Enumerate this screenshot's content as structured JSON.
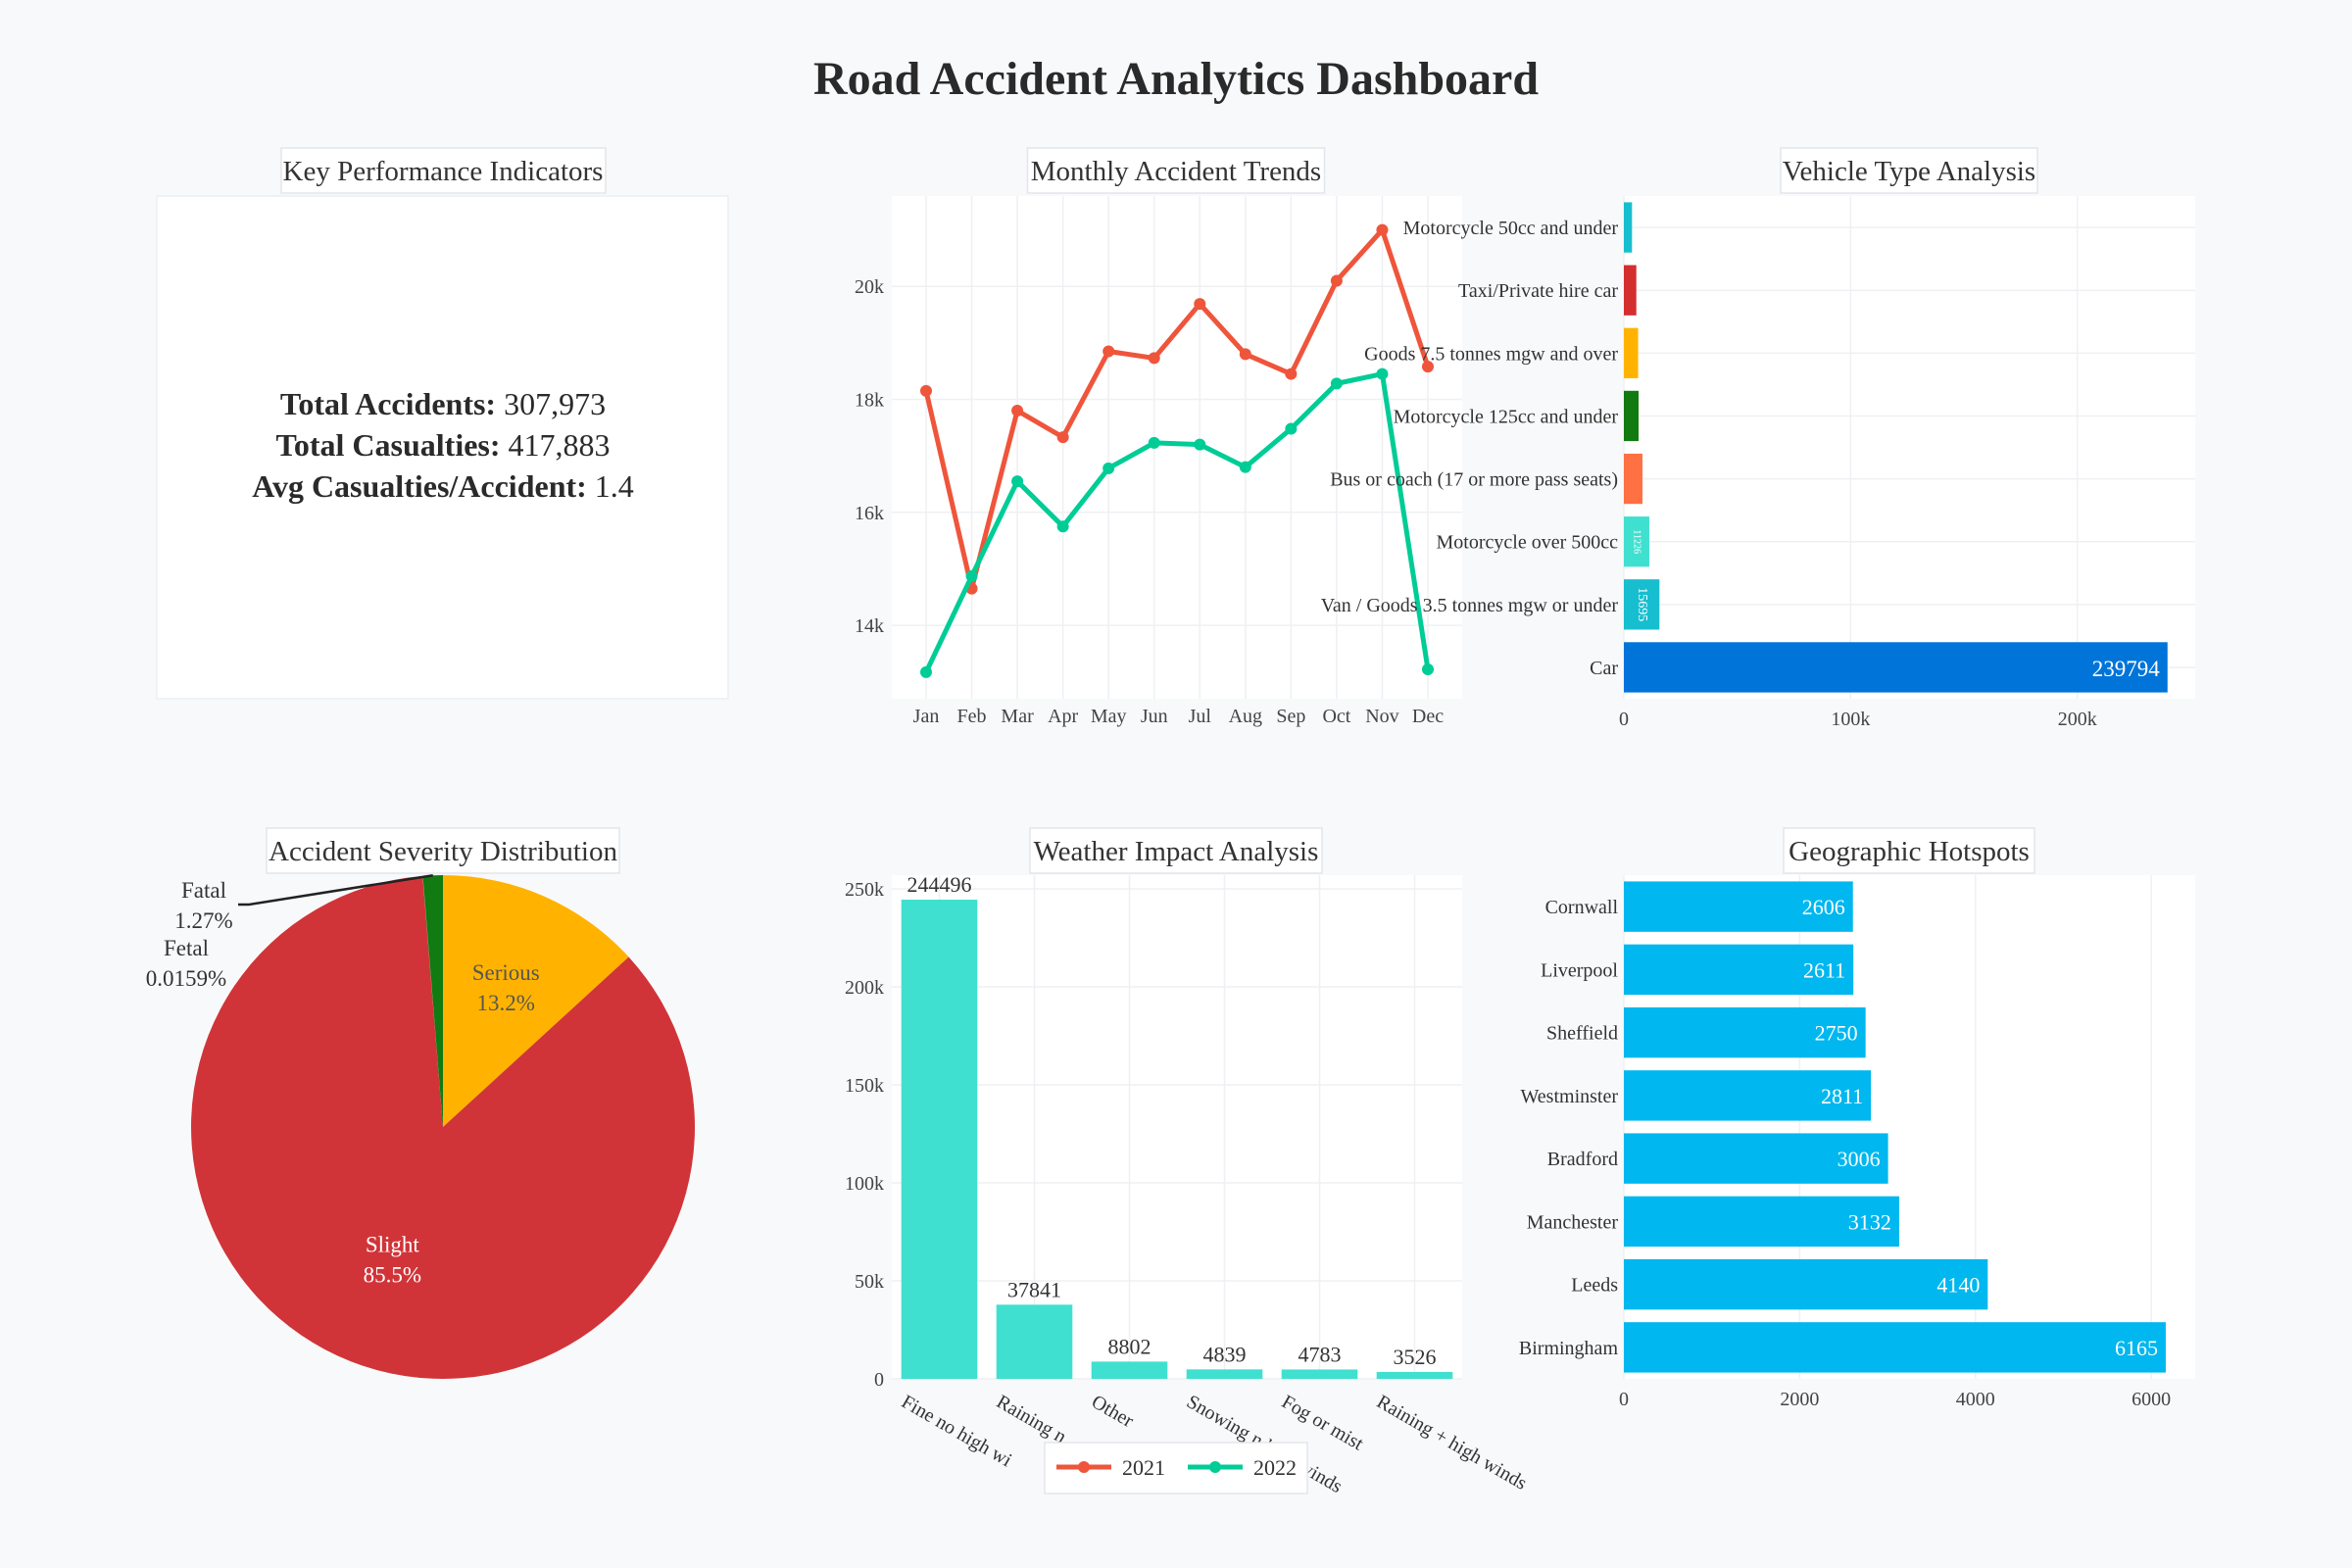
{
  "title": "Road Accident Analytics Dashboard",
  "kpi": {
    "title": "Key Performance Indicators",
    "items": [
      {
        "label": "Total Accidents:",
        "value": "307,973"
      },
      {
        "label": "Total Casualties:",
        "value": "417,883"
      },
      {
        "label": "Avg Casualties/Accident:",
        "value": "1.4"
      }
    ]
  },
  "legend": {
    "items": [
      {
        "name": "2021",
        "color": "#ef553b"
      },
      {
        "name": "2022",
        "color": "#00cc96"
      }
    ]
  },
  "chart_data": [
    {
      "id": "monthly",
      "type": "line",
      "title": "Monthly Accident Trends",
      "x": [
        "Jan",
        "Feb",
        "Mar",
        "Apr",
        "May",
        "Jun",
        "Jul",
        "Aug",
        "Sep",
        "Oct",
        "Nov",
        "Dec"
      ],
      "series": [
        {
          "name": "2021",
          "color": "#ef553b",
          "values": [
            18150,
            14650,
            17800,
            17330,
            18850,
            18730,
            19690,
            18800,
            18450,
            20100,
            21000,
            18580
          ]
        },
        {
          "name": "2022",
          "color": "#00cc96",
          "values": [
            13170,
            14870,
            16550,
            15750,
            16780,
            17230,
            17200,
            16800,
            17480,
            18280,
            18450,
            13220
          ]
        }
      ],
      "ylim": [
        12700,
        21600
      ],
      "yticks": [
        14000,
        16000,
        18000,
        20000
      ],
      "ytick_labels": [
        "14k",
        "16k",
        "18k",
        "20k"
      ],
      "grid": true
    },
    {
      "id": "vehicle",
      "type": "bar",
      "orientation": "horizontal",
      "title": "Vehicle Type Analysis",
      "categories": [
        "Car",
        "Van / Goods 3.5 tonnes mgw or under",
        "Motorcycle over 500cc",
        "Bus or coach (17 or more pass seats)",
        "Motorcycle 125cc and under",
        "Goods 7.5 tonnes mgw and over",
        "Taxi/Private hire car",
        "Motorcycle 50cc and under"
      ],
      "values": [
        239794,
        15695,
        11226,
        8200,
        6500,
        6300,
        5500,
        3600
      ],
      "data_labels": [
        "239794",
        "15695",
        "11226",
        "",
        "",
        "",
        "",
        ""
      ],
      "colors": [
        "#0074d9",
        "#17becf",
        "#40e0d0",
        "#ff7043",
        "#117a11",
        "#ffb300",
        "#d32f2f",
        "#17becf"
      ],
      "xlim": [
        0,
        252000
      ],
      "xticks": [
        0,
        100000,
        200000
      ],
      "xtick_labels": [
        "0",
        "100k",
        "200k"
      ],
      "grid": true
    },
    {
      "id": "severity",
      "type": "pie",
      "title": "Accident Severity Distribution",
      "slices": [
        {
          "label": "Serious",
          "pct": 13.2,
          "pct_label": "13.2%",
          "color": "#ffb300"
        },
        {
          "label": "Slight",
          "pct": 85.5,
          "pct_label": "85.5%",
          "color": "#d13438"
        },
        {
          "label": "Fetal",
          "pct": 0.0159,
          "pct_label": "0.0159%",
          "color": "#4caf50"
        },
        {
          "label": "Fatal",
          "pct": 1.27,
          "pct_label": "1.27%",
          "color": "#117a11"
        }
      ]
    },
    {
      "id": "weather",
      "type": "bar",
      "title": "Weather Impact Analysis",
      "categories": [
        "Fine no high winds",
        "Raining no high winds",
        "Other",
        "Snowing no high winds",
        "Fog or mist",
        "Raining + high winds"
      ],
      "tick_labels": [
        "Fine no high wi",
        "Raining n",
        "Other",
        "Snowing n  high winds",
        "Fog or mist",
        "Raining + high winds"
      ],
      "values": [
        244496,
        37841,
        8802,
        4839,
        4783,
        3526
      ],
      "color": "#40e0d0",
      "ylim": [
        0,
        257000
      ],
      "yticks": [
        0,
        50000,
        100000,
        150000,
        200000,
        250000
      ],
      "ytick_labels": [
        "0",
        "50k",
        "100k",
        "150k",
        "200k",
        "250k"
      ],
      "grid": true
    },
    {
      "id": "geo",
      "type": "bar",
      "orientation": "horizontal",
      "title": "Geographic Hotspots",
      "categories": [
        "Birmingham",
        "Leeds",
        "Manchester",
        "Bradford",
        "Westminster",
        "Sheffield",
        "Liverpool",
        "Cornwall"
      ],
      "values": [
        6165,
        4140,
        3132,
        3006,
        2811,
        2750,
        2611,
        2606
      ],
      "color": "#00b7ef",
      "xlim": [
        0,
        6500
      ],
      "xticks": [
        0,
        2000,
        4000,
        6000
      ],
      "xtick_labels": [
        "0",
        "2000",
        "4000",
        "6000"
      ],
      "grid": true
    }
  ]
}
